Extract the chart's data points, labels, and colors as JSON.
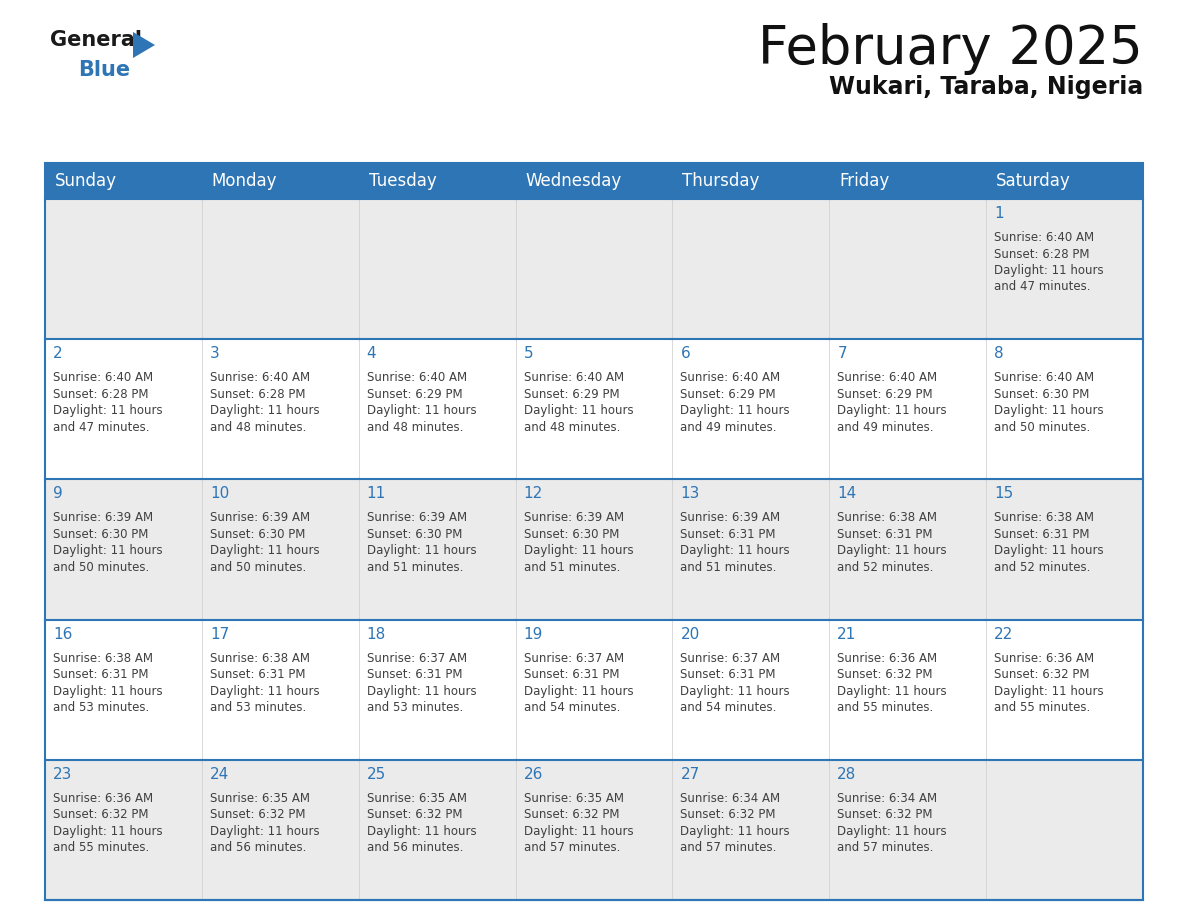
{
  "title": "February 2025",
  "subtitle": "Wukari, Taraba, Nigeria",
  "header_color": "#2E75B6",
  "header_text_color": "#FFFFFF",
  "day_names": [
    "Sunday",
    "Monday",
    "Tuesday",
    "Wednesday",
    "Thursday",
    "Friday",
    "Saturday"
  ],
  "background_color": "#FFFFFF",
  "row_bg_colors": [
    "#EBEBEB",
    "#FFFFFF",
    "#EBEBEB",
    "#FFFFFF",
    "#EBEBEB"
  ],
  "separator_color": "#2E75B6",
  "day_number_color": "#2E75B6",
  "text_color": "#404040",
  "calendar": [
    [
      null,
      null,
      null,
      null,
      null,
      null,
      1
    ],
    [
      2,
      3,
      4,
      5,
      6,
      7,
      8
    ],
    [
      9,
      10,
      11,
      12,
      13,
      14,
      15
    ],
    [
      16,
      17,
      18,
      19,
      20,
      21,
      22
    ],
    [
      23,
      24,
      25,
      26,
      27,
      28,
      null
    ]
  ],
  "day_data": {
    "1": {
      "sunrise": "6:40 AM",
      "sunset": "6:28 PM",
      "daylight": "11 hours and 47 minutes"
    },
    "2": {
      "sunrise": "6:40 AM",
      "sunset": "6:28 PM",
      "daylight": "11 hours and 47 minutes"
    },
    "3": {
      "sunrise": "6:40 AM",
      "sunset": "6:28 PM",
      "daylight": "11 hours and 48 minutes"
    },
    "4": {
      "sunrise": "6:40 AM",
      "sunset": "6:29 PM",
      "daylight": "11 hours and 48 minutes"
    },
    "5": {
      "sunrise": "6:40 AM",
      "sunset": "6:29 PM",
      "daylight": "11 hours and 48 minutes"
    },
    "6": {
      "sunrise": "6:40 AM",
      "sunset": "6:29 PM",
      "daylight": "11 hours and 49 minutes"
    },
    "7": {
      "sunrise": "6:40 AM",
      "sunset": "6:29 PM",
      "daylight": "11 hours and 49 minutes"
    },
    "8": {
      "sunrise": "6:40 AM",
      "sunset": "6:30 PM",
      "daylight": "11 hours and 50 minutes"
    },
    "9": {
      "sunrise": "6:39 AM",
      "sunset": "6:30 PM",
      "daylight": "11 hours and 50 minutes"
    },
    "10": {
      "sunrise": "6:39 AM",
      "sunset": "6:30 PM",
      "daylight": "11 hours and 50 minutes"
    },
    "11": {
      "sunrise": "6:39 AM",
      "sunset": "6:30 PM",
      "daylight": "11 hours and 51 minutes"
    },
    "12": {
      "sunrise": "6:39 AM",
      "sunset": "6:30 PM",
      "daylight": "11 hours and 51 minutes"
    },
    "13": {
      "sunrise": "6:39 AM",
      "sunset": "6:31 PM",
      "daylight": "11 hours and 51 minutes"
    },
    "14": {
      "sunrise": "6:38 AM",
      "sunset": "6:31 PM",
      "daylight": "11 hours and 52 minutes"
    },
    "15": {
      "sunrise": "6:38 AM",
      "sunset": "6:31 PM",
      "daylight": "11 hours and 52 minutes"
    },
    "16": {
      "sunrise": "6:38 AM",
      "sunset": "6:31 PM",
      "daylight": "11 hours and 53 minutes"
    },
    "17": {
      "sunrise": "6:38 AM",
      "sunset": "6:31 PM",
      "daylight": "11 hours and 53 minutes"
    },
    "18": {
      "sunrise": "6:37 AM",
      "sunset": "6:31 PM",
      "daylight": "11 hours and 53 minutes"
    },
    "19": {
      "sunrise": "6:37 AM",
      "sunset": "6:31 PM",
      "daylight": "11 hours and 54 minutes"
    },
    "20": {
      "sunrise": "6:37 AM",
      "sunset": "6:31 PM",
      "daylight": "11 hours and 54 minutes"
    },
    "21": {
      "sunrise": "6:36 AM",
      "sunset": "6:32 PM",
      "daylight": "11 hours and 55 minutes"
    },
    "22": {
      "sunrise": "6:36 AM",
      "sunset": "6:32 PM",
      "daylight": "11 hours and 55 minutes"
    },
    "23": {
      "sunrise": "6:36 AM",
      "sunset": "6:32 PM",
      "daylight": "11 hours and 55 minutes"
    },
    "24": {
      "sunrise": "6:35 AM",
      "sunset": "6:32 PM",
      "daylight": "11 hours and 56 minutes"
    },
    "25": {
      "sunrise": "6:35 AM",
      "sunset": "6:32 PM",
      "daylight": "11 hours and 56 minutes"
    },
    "26": {
      "sunrise": "6:35 AM",
      "sunset": "6:32 PM",
      "daylight": "11 hours and 57 minutes"
    },
    "27": {
      "sunrise": "6:34 AM",
      "sunset": "6:32 PM",
      "daylight": "11 hours and 57 minutes"
    },
    "28": {
      "sunrise": "6:34 AM",
      "sunset": "6:32 PM",
      "daylight": "11 hours and 57 minutes"
    }
  },
  "logo_general_color": "#1a1a1a",
  "logo_blue_color": "#2E75B6",
  "logo_triangle_color": "#2E75B6",
  "title_fontsize": 38,
  "subtitle_fontsize": 17,
  "dayname_fontsize": 12,
  "daynum_fontsize": 11,
  "cell_text_fontsize": 8.5
}
